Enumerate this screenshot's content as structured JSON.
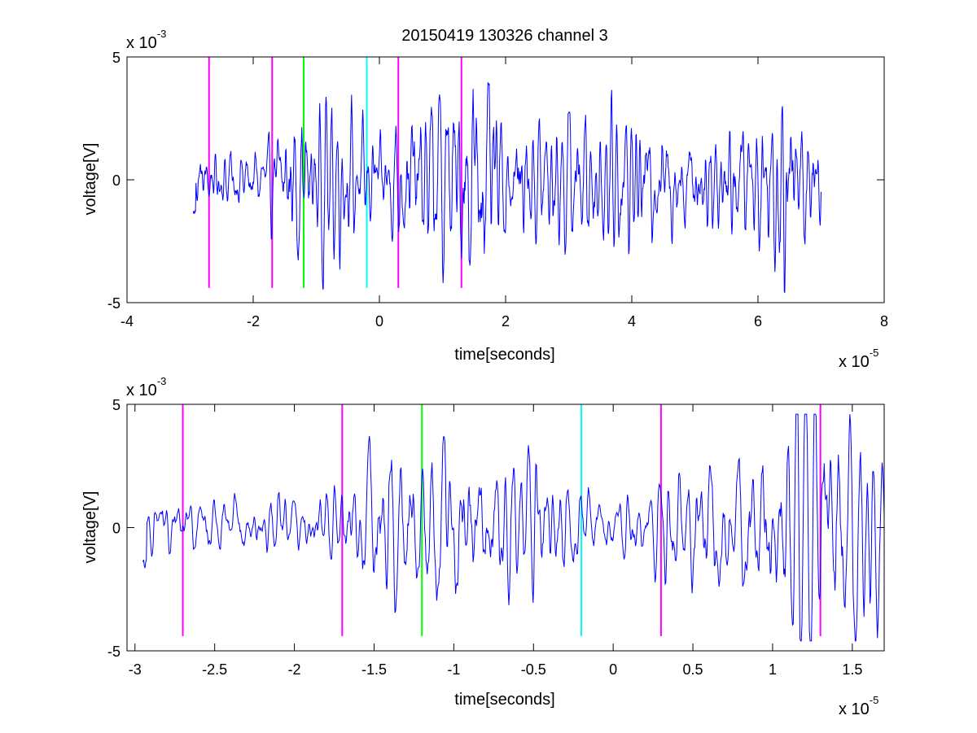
{
  "chart_data": [
    {
      "type": "line",
      "title": "20150419 130326 channel 3",
      "xlabel": "time[seconds]",
      "ylabel": "voltage[V]",
      "x_exponent_label": "x 10",
      "x_exponent_power": "-5",
      "y_exponent_label": "x 10",
      "y_exponent_power": "-3",
      "xlim": [
        -4,
        8
      ],
      "ylim": [
        -5,
        5
      ],
      "xticks": [
        -4,
        -2,
        0,
        2,
        4,
        6,
        8
      ],
      "xtick_labels": [
        "-4",
        "-2",
        "0",
        "2",
        "4",
        "6",
        "8"
      ],
      "yticks": [
        -5,
        0,
        5
      ],
      "ytick_labels": [
        "-5",
        "0",
        "5"
      ],
      "signal": {
        "color": "#0000ff",
        "x_start": -2.95,
        "x_end": 7.0,
        "envelope": [
          [
            -2.95,
            1.0
          ],
          [
            -2.0,
            1.2
          ],
          [
            -1.7,
            1.3
          ],
          [
            -1.4,
            2.8
          ],
          [
            -1.0,
            2.6
          ],
          [
            -0.5,
            2.2
          ],
          [
            0.0,
            1.5
          ],
          [
            0.3,
            2.2
          ],
          [
            0.8,
            3.0
          ],
          [
            1.3,
            3.3
          ],
          [
            1.5,
            4.3
          ],
          [
            2.0,
            2.0
          ],
          [
            3.0,
            2.3
          ],
          [
            4.0,
            2.2
          ],
          [
            5.0,
            1.8
          ],
          [
            6.0,
            2.3
          ],
          [
            6.3,
            3.3
          ],
          [
            7.0,
            1.6
          ]
        ]
      },
      "markers": [
        {
          "x": -2.7,
          "color": "#ff00ff"
        },
        {
          "x": -1.7,
          "color": "#ff00ff"
        },
        {
          "x": -1.2,
          "color": "#00ff00"
        },
        {
          "x": -0.2,
          "color": "#00ffff"
        },
        {
          "x": 0.3,
          "color": "#ff00ff"
        },
        {
          "x": 1.3,
          "color": "#ff00ff"
        }
      ],
      "marker_y_range": [
        -4.4,
        5.0
      ]
    },
    {
      "type": "line",
      "title": "",
      "xlabel": "time[seconds]",
      "ylabel": "voltage[V]",
      "x_exponent_label": "x 10",
      "x_exponent_power": "-5",
      "y_exponent_label": "x 10",
      "y_exponent_power": "-3",
      "xlim": [
        -3.05,
        1.7
      ],
      "ylim": [
        -5,
        5
      ],
      "xticks": [
        -3,
        -2.5,
        -2,
        -1.5,
        -1,
        -0.5,
        0,
        0.5,
        1,
        1.5
      ],
      "xtick_labels": [
        "-3",
        "-2.5",
        "-2",
        "-1.5",
        "-1",
        "-0.5",
        "0",
        "0.5",
        "1",
        "1.5"
      ],
      "yticks": [
        -5,
        0,
        5
      ],
      "ytick_labels": [
        "-5",
        "0",
        "5"
      ],
      "signal": {
        "color": "#0000ff",
        "x_start": -2.95,
        "x_end": 1.7,
        "envelope": [
          [
            -2.95,
            1.0
          ],
          [
            -2.0,
            1.2
          ],
          [
            -1.7,
            1.3
          ],
          [
            -1.4,
            3.2
          ],
          [
            -1.2,
            2.6
          ],
          [
            -0.8,
            2.8
          ],
          [
            -0.5,
            2.3
          ],
          [
            -0.2,
            1.2
          ],
          [
            0.0,
            1.0
          ],
          [
            0.3,
            1.8
          ],
          [
            0.7,
            2.6
          ],
          [
            1.0,
            3.2
          ],
          [
            1.3,
            3.5
          ],
          [
            1.5,
            4.4
          ],
          [
            1.7,
            2.2
          ]
        ]
      },
      "markers": [
        {
          "x": -2.7,
          "color": "#ff00ff"
        },
        {
          "x": -1.7,
          "color": "#ff00ff"
        },
        {
          "x": -1.2,
          "color": "#00ff00"
        },
        {
          "x": -0.2,
          "color": "#00ffff"
        },
        {
          "x": 0.3,
          "color": "#ff00ff"
        },
        {
          "x": 1.3,
          "color": "#ff00ff"
        }
      ],
      "marker_y_range": [
        -4.4,
        5.0
      ]
    }
  ]
}
